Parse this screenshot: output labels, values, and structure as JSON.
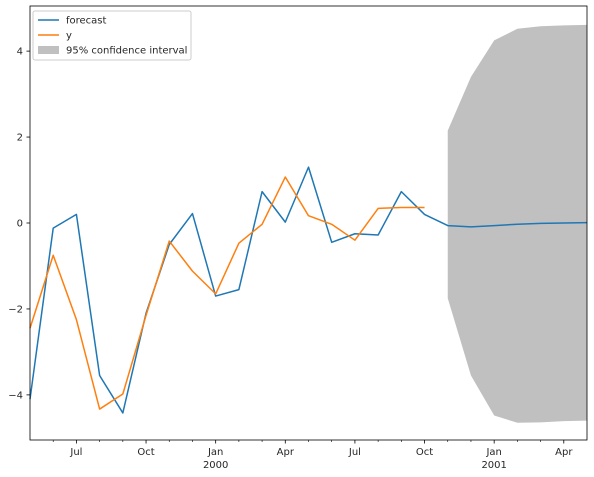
{
  "chart_data": {
    "type": "line",
    "title": "",
    "xlabel": "",
    "ylabel": "",
    "xlim": [
      "1999-05",
      "2001-05"
    ],
    "ylim": [
      -5.05,
      5.05
    ],
    "grid": false,
    "legend_position": "top-left",
    "x_ticks": [
      {
        "at": "1999-07",
        "label": "Jul",
        "sublabel": ""
      },
      {
        "at": "1999-10",
        "label": "Oct",
        "sublabel": ""
      },
      {
        "at": "2000-01",
        "label": "Jan",
        "sublabel": "2000"
      },
      {
        "at": "2000-04",
        "label": "Apr",
        "sublabel": ""
      },
      {
        "at": "2000-07",
        "label": "Jul",
        "sublabel": ""
      },
      {
        "at": "2000-10",
        "label": "Oct",
        "sublabel": ""
      },
      {
        "at": "2001-01",
        "label": "Jan",
        "sublabel": "2001"
      },
      {
        "at": "2001-04",
        "label": "Apr",
        "sublabel": ""
      }
    ],
    "x_minor_ticks": [
      "1999-06",
      "1999-08",
      "1999-09",
      "1999-11",
      "1999-12",
      "2000-02",
      "2000-03",
      "2000-05",
      "2000-06",
      "2000-08",
      "2000-09",
      "2000-11",
      "2000-12",
      "2001-02",
      "2001-03"
    ],
    "y_ticks": [
      -4,
      -2,
      0,
      2,
      4
    ],
    "y_tick_labels": [
      "−4",
      "−2",
      "0",
      "2",
      "4"
    ],
    "series": [
      {
        "name": "forecast",
        "color": "#1f77b4",
        "x": [
          "1999-05",
          "1999-06",
          "1999-07",
          "1999-08",
          "1999-09",
          "1999-10",
          "1999-11",
          "1999-12",
          "2000-01",
          "2000-02",
          "2000-03",
          "2000-04",
          "2000-05",
          "2000-06",
          "2000-07",
          "2000-08",
          "2000-09",
          "2000-10",
          "2000-11",
          "2000-12",
          "2001-01",
          "2001-02",
          "2001-03",
          "2001-04",
          "2001-05"
        ],
        "y": [
          -4.1,
          -0.12,
          0.2,
          -3.55,
          -4.42,
          -2.1,
          -0.5,
          0.22,
          -1.7,
          -1.55,
          0.73,
          0.02,
          1.3,
          -0.45,
          -0.25,
          -0.28,
          0.73,
          0.2,
          -0.06,
          -0.09,
          -0.06,
          -0.03,
          -0.01,
          0.0,
          0.01
        ]
      },
      {
        "name": "y",
        "color": "#ff7f0e",
        "x": [
          "1999-05",
          "1999-06",
          "1999-07",
          "1999-08",
          "1999-09",
          "1999-10",
          "1999-11",
          "1999-12",
          "2000-01",
          "2000-02",
          "2000-03",
          "2000-04",
          "2000-05",
          "2000-06",
          "2000-07",
          "2000-08",
          "2000-09",
          "2000-10"
        ],
        "y": [
          -2.45,
          -0.75,
          -2.25,
          -4.33,
          -3.98,
          -2.15,
          -0.42,
          -1.12,
          -1.65,
          -0.47,
          -0.03,
          1.07,
          0.17,
          -0.03,
          -0.4,
          0.34,
          0.36,
          0.36
        ]
      }
    ],
    "confidence_interval": {
      "name": "95% confidence interval",
      "color": "#c0c0c0",
      "x": [
        "2000-11",
        "2000-12",
        "2001-01",
        "2001-02",
        "2001-03",
        "2001-04",
        "2001-05"
      ],
      "upper": [
        2.15,
        3.4,
        4.25,
        4.52,
        4.58,
        4.6,
        4.61
      ],
      "lower": [
        -1.75,
        -3.55,
        -4.48,
        -4.65,
        -4.64,
        -4.61,
        -4.6
      ]
    }
  }
}
